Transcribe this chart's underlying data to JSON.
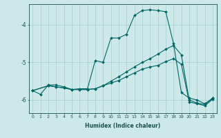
{
  "xlabel": "Humidex (Indice chaleur)",
  "bg_color": "#cce8e8",
  "line_color": "#006666",
  "grid_color": "#aad4d4",
  "xlim": [
    -0.5,
    23.5
  ],
  "ylim": [
    -6.35,
    -3.45
  ],
  "yticks": [
    -6,
    -5,
    -4
  ],
  "xticks": [
    0,
    1,
    2,
    3,
    4,
    5,
    6,
    7,
    8,
    9,
    10,
    11,
    12,
    13,
    14,
    15,
    16,
    17,
    18,
    19,
    20,
    21,
    22,
    23
  ],
  "line1_x": [
    0,
    1,
    2,
    3,
    4,
    5,
    6,
    7,
    8,
    9,
    10,
    11,
    12,
    13,
    14,
    15,
    16,
    17,
    18,
    19,
    20,
    21,
    22,
    23
  ],
  "line1_y": [
    -5.75,
    -5.85,
    -5.6,
    -5.6,
    -5.65,
    -5.72,
    -5.7,
    -5.7,
    -4.95,
    -5.0,
    -4.35,
    -4.35,
    -4.25,
    -3.75,
    -3.62,
    -3.6,
    -3.62,
    -3.65,
    -4.5,
    -5.8,
    -5.95,
    -6.0,
    -6.1,
    -5.95
  ],
  "line2_x": [
    0,
    2,
    3,
    4,
    5,
    6,
    7,
    8,
    9,
    10,
    11,
    12,
    13,
    14,
    15,
    16,
    17,
    18,
    19,
    20,
    21,
    22,
    23
  ],
  "line2_y": [
    -5.75,
    -5.62,
    -5.65,
    -5.68,
    -5.72,
    -5.72,
    -5.72,
    -5.7,
    -5.62,
    -5.5,
    -5.38,
    -5.25,
    -5.12,
    -5.0,
    -4.9,
    -4.78,
    -4.65,
    -4.55,
    -4.8,
    -6.0,
    -6.08,
    -6.12,
    -5.95
  ],
  "line3_x": [
    0,
    2,
    3,
    4,
    5,
    6,
    7,
    8,
    9,
    10,
    11,
    12,
    13,
    14,
    15,
    16,
    17,
    18,
    19,
    20,
    21,
    22,
    23
  ],
  "line3_y": [
    -5.75,
    -5.62,
    -5.65,
    -5.68,
    -5.72,
    -5.72,
    -5.72,
    -5.7,
    -5.62,
    -5.55,
    -5.48,
    -5.38,
    -5.28,
    -5.18,
    -5.12,
    -5.08,
    -4.98,
    -4.9,
    -5.05,
    -6.05,
    -6.1,
    -6.15,
    -5.98
  ]
}
